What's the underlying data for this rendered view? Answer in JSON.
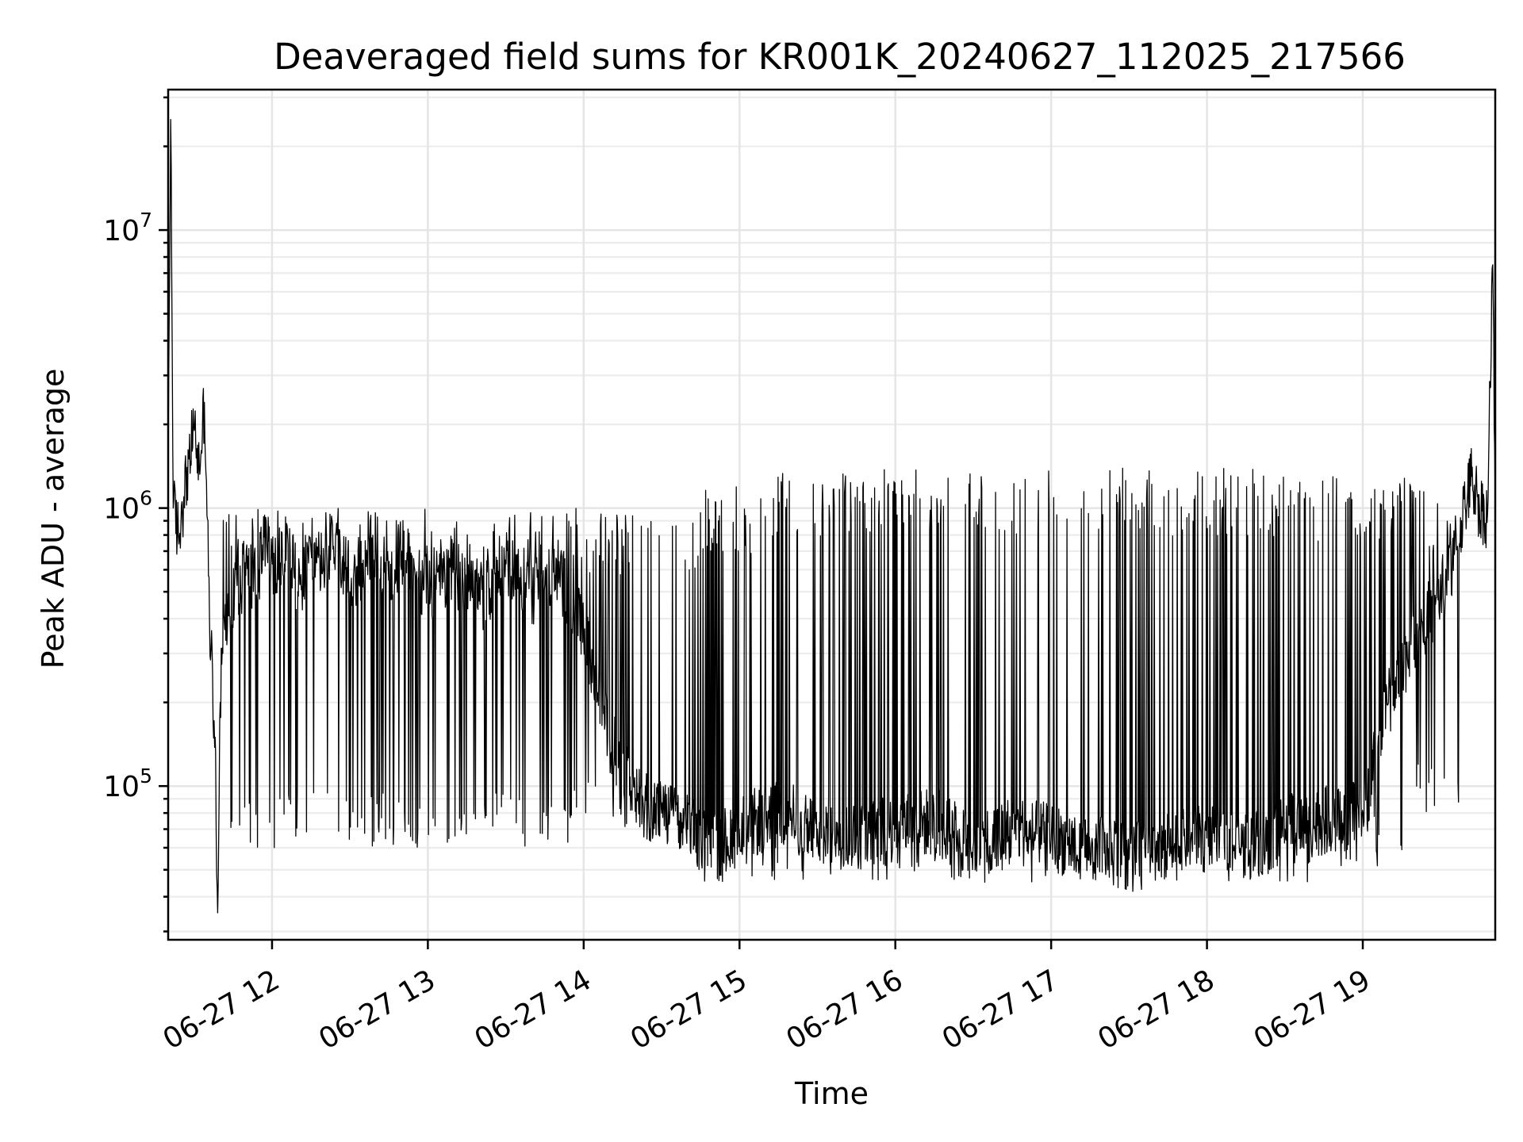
{
  "chart_data": {
    "type": "line",
    "title": "Deaveraged field sums for KR001K_20240627_112025_217566",
    "xlabel": "Time",
    "ylabel": "Peak ADU - average",
    "yscale": "log",
    "ylim": [
      28000,
      32000000
    ],
    "xlim": [
      "2024-06-27 11:20",
      "2024-06-27 19:51"
    ],
    "x_tick_labels": [
      "06-27 12",
      "06-27 13",
      "06-27 14",
      "06-27 15",
      "06-27 16",
      "06-27 17",
      "06-27 18",
      "06-27 19"
    ],
    "x_tick_times": [
      "2024-06-27 12:00",
      "2024-06-27 13:00",
      "2024-06-27 14:00",
      "2024-06-27 15:00",
      "2024-06-27 16:00",
      "2024-06-27 17:00",
      "2024-06-27 18:00",
      "2024-06-27 19:00"
    ],
    "y_ticks": [
      {
        "base": "10",
        "exp": "5",
        "value": 100000
      },
      {
        "base": "10",
        "exp": "6",
        "value": 1000000
      },
      {
        "base": "10",
        "exp": "7",
        "value": 10000000
      }
    ],
    "grid": true,
    "line_color": "#000000",
    "series": [
      {
        "x": [
          "2024-06-27 11:20",
          "2024-06-27 11:21",
          "2024-06-27 11:22",
          "2024-06-27 11:24",
          "2024-06-27 11:26",
          "2024-06-27 11:28",
          "2024-06-27 11:30",
          "2024-06-27 11:32",
          "2024-06-27 11:34",
          "2024-06-27 11:36",
          "2024-06-27 11:38",
          "2024-06-27 11:39",
          "2024-06-27 11:40",
          "2024-06-27 11:41",
          "2024-06-27 11:42",
          "2024-06-27 11:44",
          "2024-06-27 11:46",
          "2024-06-27 11:48",
          "2024-06-27 11:50",
          "2024-06-27 11:52",
          "2024-06-27 11:55",
          "2024-06-27 11:58",
          "2024-06-27 12:02",
          "2024-06-27 12:06",
          "2024-06-27 12:10",
          "2024-06-27 12:15",
          "2024-06-27 12:20",
          "2024-06-27 12:25",
          "2024-06-27 12:30",
          "2024-06-27 12:35",
          "2024-06-27 12:40",
          "2024-06-27 12:45",
          "2024-06-27 12:50",
          "2024-06-27 12:55",
          "2024-06-27 13:00",
          "2024-06-27 13:10",
          "2024-06-27 13:20",
          "2024-06-27 13:30",
          "2024-06-27 13:40",
          "2024-06-27 13:50",
          "2024-06-27 14:00",
          "2024-06-27 14:10",
          "2024-06-27 14:20",
          "2024-06-27 14:30",
          "2024-06-27 14:40",
          "2024-06-27 14:50",
          "2024-06-27 15:00",
          "2024-06-27 15:15",
          "2024-06-27 15:30",
          "2024-06-27 15:45",
          "2024-06-27 16:00",
          "2024-06-27 16:15",
          "2024-06-27 16:30",
          "2024-06-27 16:45",
          "2024-06-27 17:00",
          "2024-06-27 17:15",
          "2024-06-27 17:30",
          "2024-06-27 17:45",
          "2024-06-27 18:00",
          "2024-06-27 18:15",
          "2024-06-27 18:30",
          "2024-06-27 18:45",
          "2024-06-27 19:00",
          "2024-06-27 19:10",
          "2024-06-27 19:20",
          "2024-06-27 19:28",
          "2024-06-27 19:33",
          "2024-06-27 19:38",
          "2024-06-27 19:42",
          "2024-06-27 19:45",
          "2024-06-27 19:48",
          "2024-06-27 19:50",
          "2024-06-27 19:51"
        ],
        "y": [
          1500000,
          25000000,
          1000000,
          800000,
          1100000,
          1500000,
          1900000,
          1400000,
          2400000,
          400000,
          150000,
          35000,
          200000,
          300000,
          450000,
          350000,
          600000,
          500000,
          700000,
          550000,
          600000,
          750000,
          600000,
          800000,
          500000,
          700000,
          600000,
          800000,
          500000,
          650000,
          750000,
          550000,
          700000,
          600000,
          500000,
          600000,
          450000,
          650000,
          500000,
          600000,
          350000,
          150000,
          90000,
          80000,
          70000,
          60000,
          70000,
          80000,
          70000,
          65000,
          70000,
          75000,
          60000,
          70000,
          65000,
          60000,
          55000,
          60000,
          65000,
          60000,
          70000,
          75000,
          80000,
          200000,
          350000,
          450000,
          550000,
          900000,
          1300000,
          1000000,
          950000,
          7500000,
          1000000
        ],
        "spikes": {
          "from": [
            "2024-06-27 11:40",
            "2024-06-27 13:55",
            "2024-06-27 14:45",
            "2024-06-27 15:05",
            "2024-06-27 16:00",
            "2024-06-27 17:00",
            "2024-06-27 17:50",
            "2024-06-27 18:40",
            "2024-06-27 19:20"
          ],
          "upper": [
            1000000,
            1000000,
            1200000,
            1400000,
            1400000,
            1400000,
            1400000,
            1300000,
            1200000
          ],
          "lower": [
            60000,
            70000,
            45000,
            45000,
            45000,
            45000,
            45000,
            50000,
            80000
          ]
        }
      }
    ]
  }
}
